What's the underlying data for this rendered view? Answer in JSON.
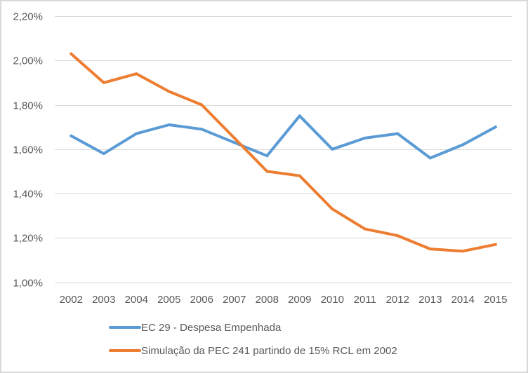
{
  "chart_data": {
    "type": "line",
    "title": "",
    "xlabel": "",
    "ylabel": "",
    "categories": [
      "2002",
      "2003",
      "2004",
      "2005",
      "2006",
      "2007",
      "2008",
      "2009",
      "2010",
      "2011",
      "2012",
      "2013",
      "2014",
      "2015"
    ],
    "ylim": [
      1.0,
      2.2
    ],
    "yticks": [
      1.0,
      1.2,
      1.4,
      1.6,
      1.8,
      2.0,
      2.2
    ],
    "ytick_labels": [
      "1,00%",
      "1,20%",
      "1,40%",
      "1,60%",
      "1,80%",
      "2,00%",
      "2,20%"
    ],
    "grid": true,
    "legend_position": "bottom",
    "series": [
      {
        "name": "EC 29 - Despesa Empenhada",
        "color": "#5B9BD5",
        "values": [
          1.66,
          1.58,
          1.67,
          1.71,
          1.69,
          1.63,
          1.57,
          1.75,
          1.6,
          1.65,
          1.67,
          1.56,
          1.62,
          1.7
        ]
      },
      {
        "name": "Simulação da PEC 241 partindo de 15% RCL em 2002",
        "color": "#ED7D31",
        "values": [
          2.03,
          1.9,
          1.94,
          1.86,
          1.8,
          1.65,
          1.5,
          1.48,
          1.33,
          1.24,
          1.21,
          1.15,
          1.14,
          1.17
        ]
      }
    ]
  }
}
